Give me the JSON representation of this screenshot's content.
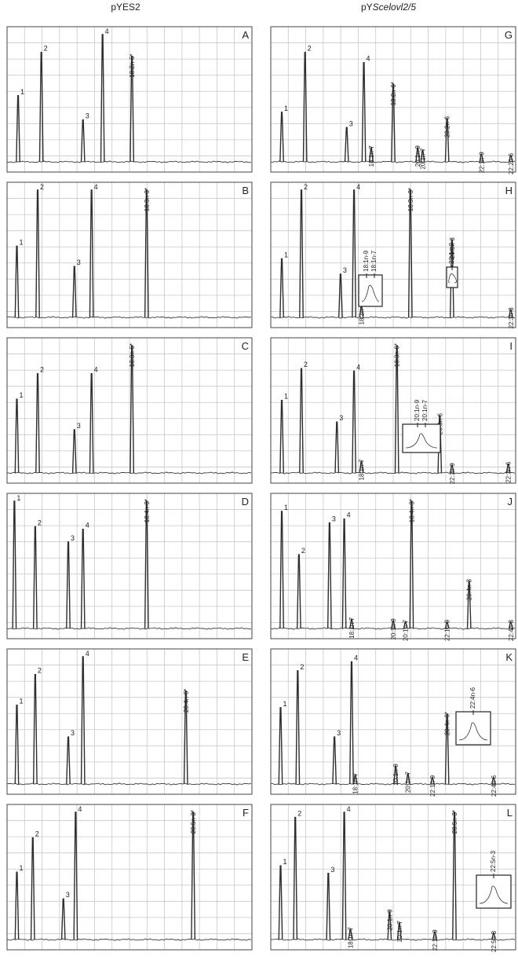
{
  "columns": [
    {
      "title_plain": "pYES2",
      "title_italic": ""
    },
    {
      "title_plain": "pY",
      "title_italic": "Scelovl2/5"
    }
  ],
  "chart_data": [
    {
      "type": "line",
      "panel": "A",
      "peaks": [
        {
          "rt": 0.045,
          "h": 0.52,
          "label": "1",
          "style": "num"
        },
        {
          "rt": 0.14,
          "h": 0.86,
          "label": "2",
          "style": "num"
        },
        {
          "rt": 0.31,
          "h": 0.33,
          "label": "3",
          "style": "num"
        },
        {
          "rt": 0.39,
          "h": 1.0,
          "label": "4",
          "style": "num"
        },
        {
          "rt": 0.51,
          "h": 0.83,
          "label": "18:2n-6*",
          "style": "vert"
        }
      ]
    },
    {
      "type": "line",
      "panel": "G",
      "peaks": [
        {
          "rt": 0.045,
          "h": 0.39,
          "label": "1",
          "style": "num"
        },
        {
          "rt": 0.14,
          "h": 0.86,
          "label": "2",
          "style": "num"
        },
        {
          "rt": 0.31,
          "h": 0.27,
          "label": "3",
          "style": "num"
        },
        {
          "rt": 0.38,
          "h": 0.78,
          "label": "4",
          "style": "num"
        },
        {
          "rt": 0.41,
          "h": 0.11,
          "label": "18:1n-7",
          "style": "vert"
        },
        {
          "rt": 0.5,
          "h": 0.61,
          "label": "18:2n-6*",
          "style": "vert"
        },
        {
          "rt": 0.6,
          "h": 0.11,
          "label": "20:1n-9",
          "style": "vert"
        },
        {
          "rt": 0.62,
          "h": 0.09,
          "label": "20:1n-7",
          "style": "vert"
        },
        {
          "rt": 0.72,
          "h": 0.34,
          "label": "20:2n-6",
          "style": "vert"
        },
        {
          "rt": 0.86,
          "h": 0.06,
          "label": "22:1n-9",
          "style": "vert"
        },
        {
          "rt": 0.98,
          "h": 0.05,
          "label": "22:2n-6",
          "style": "vert"
        }
      ]
    },
    {
      "type": "line",
      "panel": "B",
      "peaks": [
        {
          "rt": 0.04,
          "h": 0.56,
          "label": "1",
          "style": "num"
        },
        {
          "rt": 0.125,
          "h": 1.0,
          "label": "2",
          "style": "num"
        },
        {
          "rt": 0.275,
          "h": 0.4,
          "label": "3",
          "style": "num"
        },
        {
          "rt": 0.345,
          "h": 1.0,
          "label": "4",
          "style": "num"
        },
        {
          "rt": 0.57,
          "h": 1.0,
          "label": "18:3n-3*",
          "style": "vert"
        }
      ]
    },
    {
      "type": "line",
      "panel": "H",
      "peaks": [
        {
          "rt": 0.045,
          "h": 0.46,
          "label": "1",
          "style": "num"
        },
        {
          "rt": 0.125,
          "h": 1.0,
          "label": "2",
          "style": "num"
        },
        {
          "rt": 0.285,
          "h": 0.34,
          "label": "3",
          "style": "num"
        },
        {
          "rt": 0.34,
          "h": 1.0,
          "label": "4",
          "style": "num"
        },
        {
          "rt": 0.37,
          "h": 0.09,
          "label": "18:1n-7",
          "style": "vert"
        },
        {
          "rt": 0.57,
          "h": 1.0,
          "label": "18:3n-3*",
          "style": "vert"
        },
        {
          "rt": 0.74,
          "h": 0.61,
          "label": "20:3n-3",
          "style": "vert"
        },
        {
          "rt": 0.98,
          "h": 0.06,
          "label": "22:3n-3",
          "style": "vert"
        }
      ]
    },
    {
      "type": "line",
      "panel": "C",
      "peaks": [
        {
          "rt": 0.04,
          "h": 0.58,
          "label": "1",
          "style": "num"
        },
        {
          "rt": 0.125,
          "h": 0.78,
          "label": "2",
          "style": "num"
        },
        {
          "rt": 0.275,
          "h": 0.34,
          "label": "3",
          "style": "num"
        },
        {
          "rt": 0.345,
          "h": 0.78,
          "label": "4",
          "style": "num"
        },
        {
          "rt": 0.51,
          "h": 1.0,
          "label": "18:3n-6*",
          "style": "vert"
        }
      ]
    },
    {
      "type": "line",
      "panel": "I",
      "peaks": [
        {
          "rt": 0.045,
          "h": 0.57,
          "label": "1",
          "style": "num"
        },
        {
          "rt": 0.125,
          "h": 0.82,
          "label": "2",
          "style": "num"
        },
        {
          "rt": 0.27,
          "h": 0.4,
          "label": "3",
          "style": "num"
        },
        {
          "rt": 0.34,
          "h": 0.8,
          "label": "4",
          "style": "num"
        },
        {
          "rt": 0.37,
          "h": 0.09,
          "label": "18:1n-7",
          "style": "vert"
        },
        {
          "rt": 0.515,
          "h": 1.0,
          "label": "18:3n-6*",
          "style": "vert"
        },
        {
          "rt": 0.69,
          "h": 0.45,
          "label": "20:3n-6",
          "style": "vert"
        },
        {
          "rt": 0.74,
          "h": 0.06,
          "label": "22:1n-9",
          "style": "vert"
        },
        {
          "rt": 0.97,
          "h": 0.07,
          "label": "22:3n-6",
          "style": "vert"
        }
      ]
    },
    {
      "type": "line",
      "panel": "D",
      "peaks": [
        {
          "rt": 0.03,
          "h": 1.0,
          "label": "1",
          "style": "num"
        },
        {
          "rt": 0.115,
          "h": 0.8,
          "label": "2",
          "style": "num"
        },
        {
          "rt": 0.25,
          "h": 0.68,
          "label": "3",
          "style": "num"
        },
        {
          "rt": 0.31,
          "h": 0.78,
          "label": "4",
          "style": "num"
        },
        {
          "rt": 0.57,
          "h": 1.0,
          "label": "18:4n-3*",
          "style": "vert"
        }
      ]
    },
    {
      "type": "line",
      "panel": "J",
      "peaks": [
        {
          "rt": 0.045,
          "h": 0.92,
          "label": "1",
          "style": "num"
        },
        {
          "rt": 0.115,
          "h": 0.58,
          "label": "2",
          "style": "num"
        },
        {
          "rt": 0.24,
          "h": 0.83,
          "label": "3",
          "style": "num"
        },
        {
          "rt": 0.3,
          "h": 0.86,
          "label": "4",
          "style": "num"
        },
        {
          "rt": 0.33,
          "h": 0.07,
          "label": "18:1n-7",
          "style": "vert"
        },
        {
          "rt": 0.5,
          "h": 0.06,
          "label": "20:1n-9",
          "style": "vert"
        },
        {
          "rt": 0.55,
          "h": 0.05,
          "label": "20:1n-7",
          "style": "vert"
        },
        {
          "rt": 0.575,
          "h": 1.0,
          "label": "18:4n-3*",
          "style": "vert"
        },
        {
          "rt": 0.72,
          "h": 0.05,
          "label": "22:1n-9",
          "style": "vert"
        },
        {
          "rt": 0.81,
          "h": 0.37,
          "label": "20:4n-3",
          "style": "vert"
        },
        {
          "rt": 0.98,
          "h": 0.05,
          "label": "22:4n-3",
          "style": "vert"
        }
      ]
    },
    {
      "type": "line",
      "panel": "E",
      "peaks": [
        {
          "rt": 0.04,
          "h": 0.62,
          "label": "1",
          "style": "num"
        },
        {
          "rt": 0.115,
          "h": 0.86,
          "label": "2",
          "style": "num"
        },
        {
          "rt": 0.25,
          "h": 0.37,
          "label": "3",
          "style": "num"
        },
        {
          "rt": 0.31,
          "h": 1.0,
          "label": "4",
          "style": "num"
        },
        {
          "rt": 0.73,
          "h": 0.73,
          "label": "20:4n-6*",
          "style": "vert"
        }
      ]
    },
    {
      "type": "line",
      "panel": "K",
      "peaks": [
        {
          "rt": 0.04,
          "h": 0.6,
          "label": "1",
          "style": "num"
        },
        {
          "rt": 0.11,
          "h": 0.89,
          "label": "2",
          "style": "num"
        },
        {
          "rt": 0.26,
          "h": 0.37,
          "label": "3",
          "style": "num"
        },
        {
          "rt": 0.33,
          "h": 0.96,
          "label": "4",
          "style": "num"
        },
        {
          "rt": 0.345,
          "h": 0.07,
          "label": "18:1n-7",
          "style": "vert"
        },
        {
          "rt": 0.51,
          "h": 0.14,
          "label": "20:1n-9",
          "style": "vert"
        },
        {
          "rt": 0.56,
          "h": 0.08,
          "label": "20:1n-7",
          "style": "vert"
        },
        {
          "rt": 0.66,
          "h": 0.05,
          "label": "22:1n-9",
          "style": "vert"
        },
        {
          "rt": 0.72,
          "h": 0.55,
          "label": "20:4n-6*",
          "style": "vert"
        },
        {
          "rt": 0.91,
          "h": 0.05,
          "label": "22:4n-6",
          "style": "vert"
        }
      ]
    },
    {
      "type": "line",
      "panel": "F",
      "peaks": [
        {
          "rt": 0.04,
          "h": 0.53,
          "label": "1",
          "style": "num"
        },
        {
          "rt": 0.105,
          "h": 0.8,
          "label": "2",
          "style": "num"
        },
        {
          "rt": 0.23,
          "h": 0.32,
          "label": "3",
          "style": "num"
        },
        {
          "rt": 0.28,
          "h": 1.0,
          "label": "4",
          "style": "num"
        },
        {
          "rt": 0.76,
          "h": 1.0,
          "label": "20:5n-3*",
          "style": "vert"
        }
      ]
    },
    {
      "type": "line",
      "panel": "L",
      "peaks": [
        {
          "rt": 0.04,
          "h": 0.58,
          "label": "1",
          "style": "num"
        },
        {
          "rt": 0.1,
          "h": 0.96,
          "label": "2",
          "style": "num"
        },
        {
          "rt": 0.235,
          "h": 0.52,
          "label": "3",
          "style": "num"
        },
        {
          "rt": 0.3,
          "h": 1.0,
          "label": "4",
          "style": "num"
        },
        {
          "rt": 0.325,
          "h": 0.08,
          "label": "18:1n-7",
          "style": "vert"
        },
        {
          "rt": 0.485,
          "h": 0.22,
          "label": "20:1n-9",
          "style": "vert"
        },
        {
          "rt": 0.525,
          "h": 0.13,
          "label": "20:1n-7",
          "style": "vert"
        },
        {
          "rt": 0.67,
          "h": 0.06,
          "label": "22:1n-9",
          "style": "vert"
        },
        {
          "rt": 0.75,
          "h": 1.0,
          "label": "20:5n-3*",
          "style": "vert"
        },
        {
          "rt": 0.91,
          "h": 0.05,
          "label": "22:5n-3",
          "style": "vert"
        }
      ]
    }
  ],
  "insets": {
    "H": [
      "18:1n-9",
      "18:1n-7",
      "22:1n-9"
    ],
    "I": [
      "20:1n-9",
      "20:1n-7"
    ],
    "K": [
      "22:4n-6"
    ],
    "L": [
      "22:5n-3"
    ]
  }
}
